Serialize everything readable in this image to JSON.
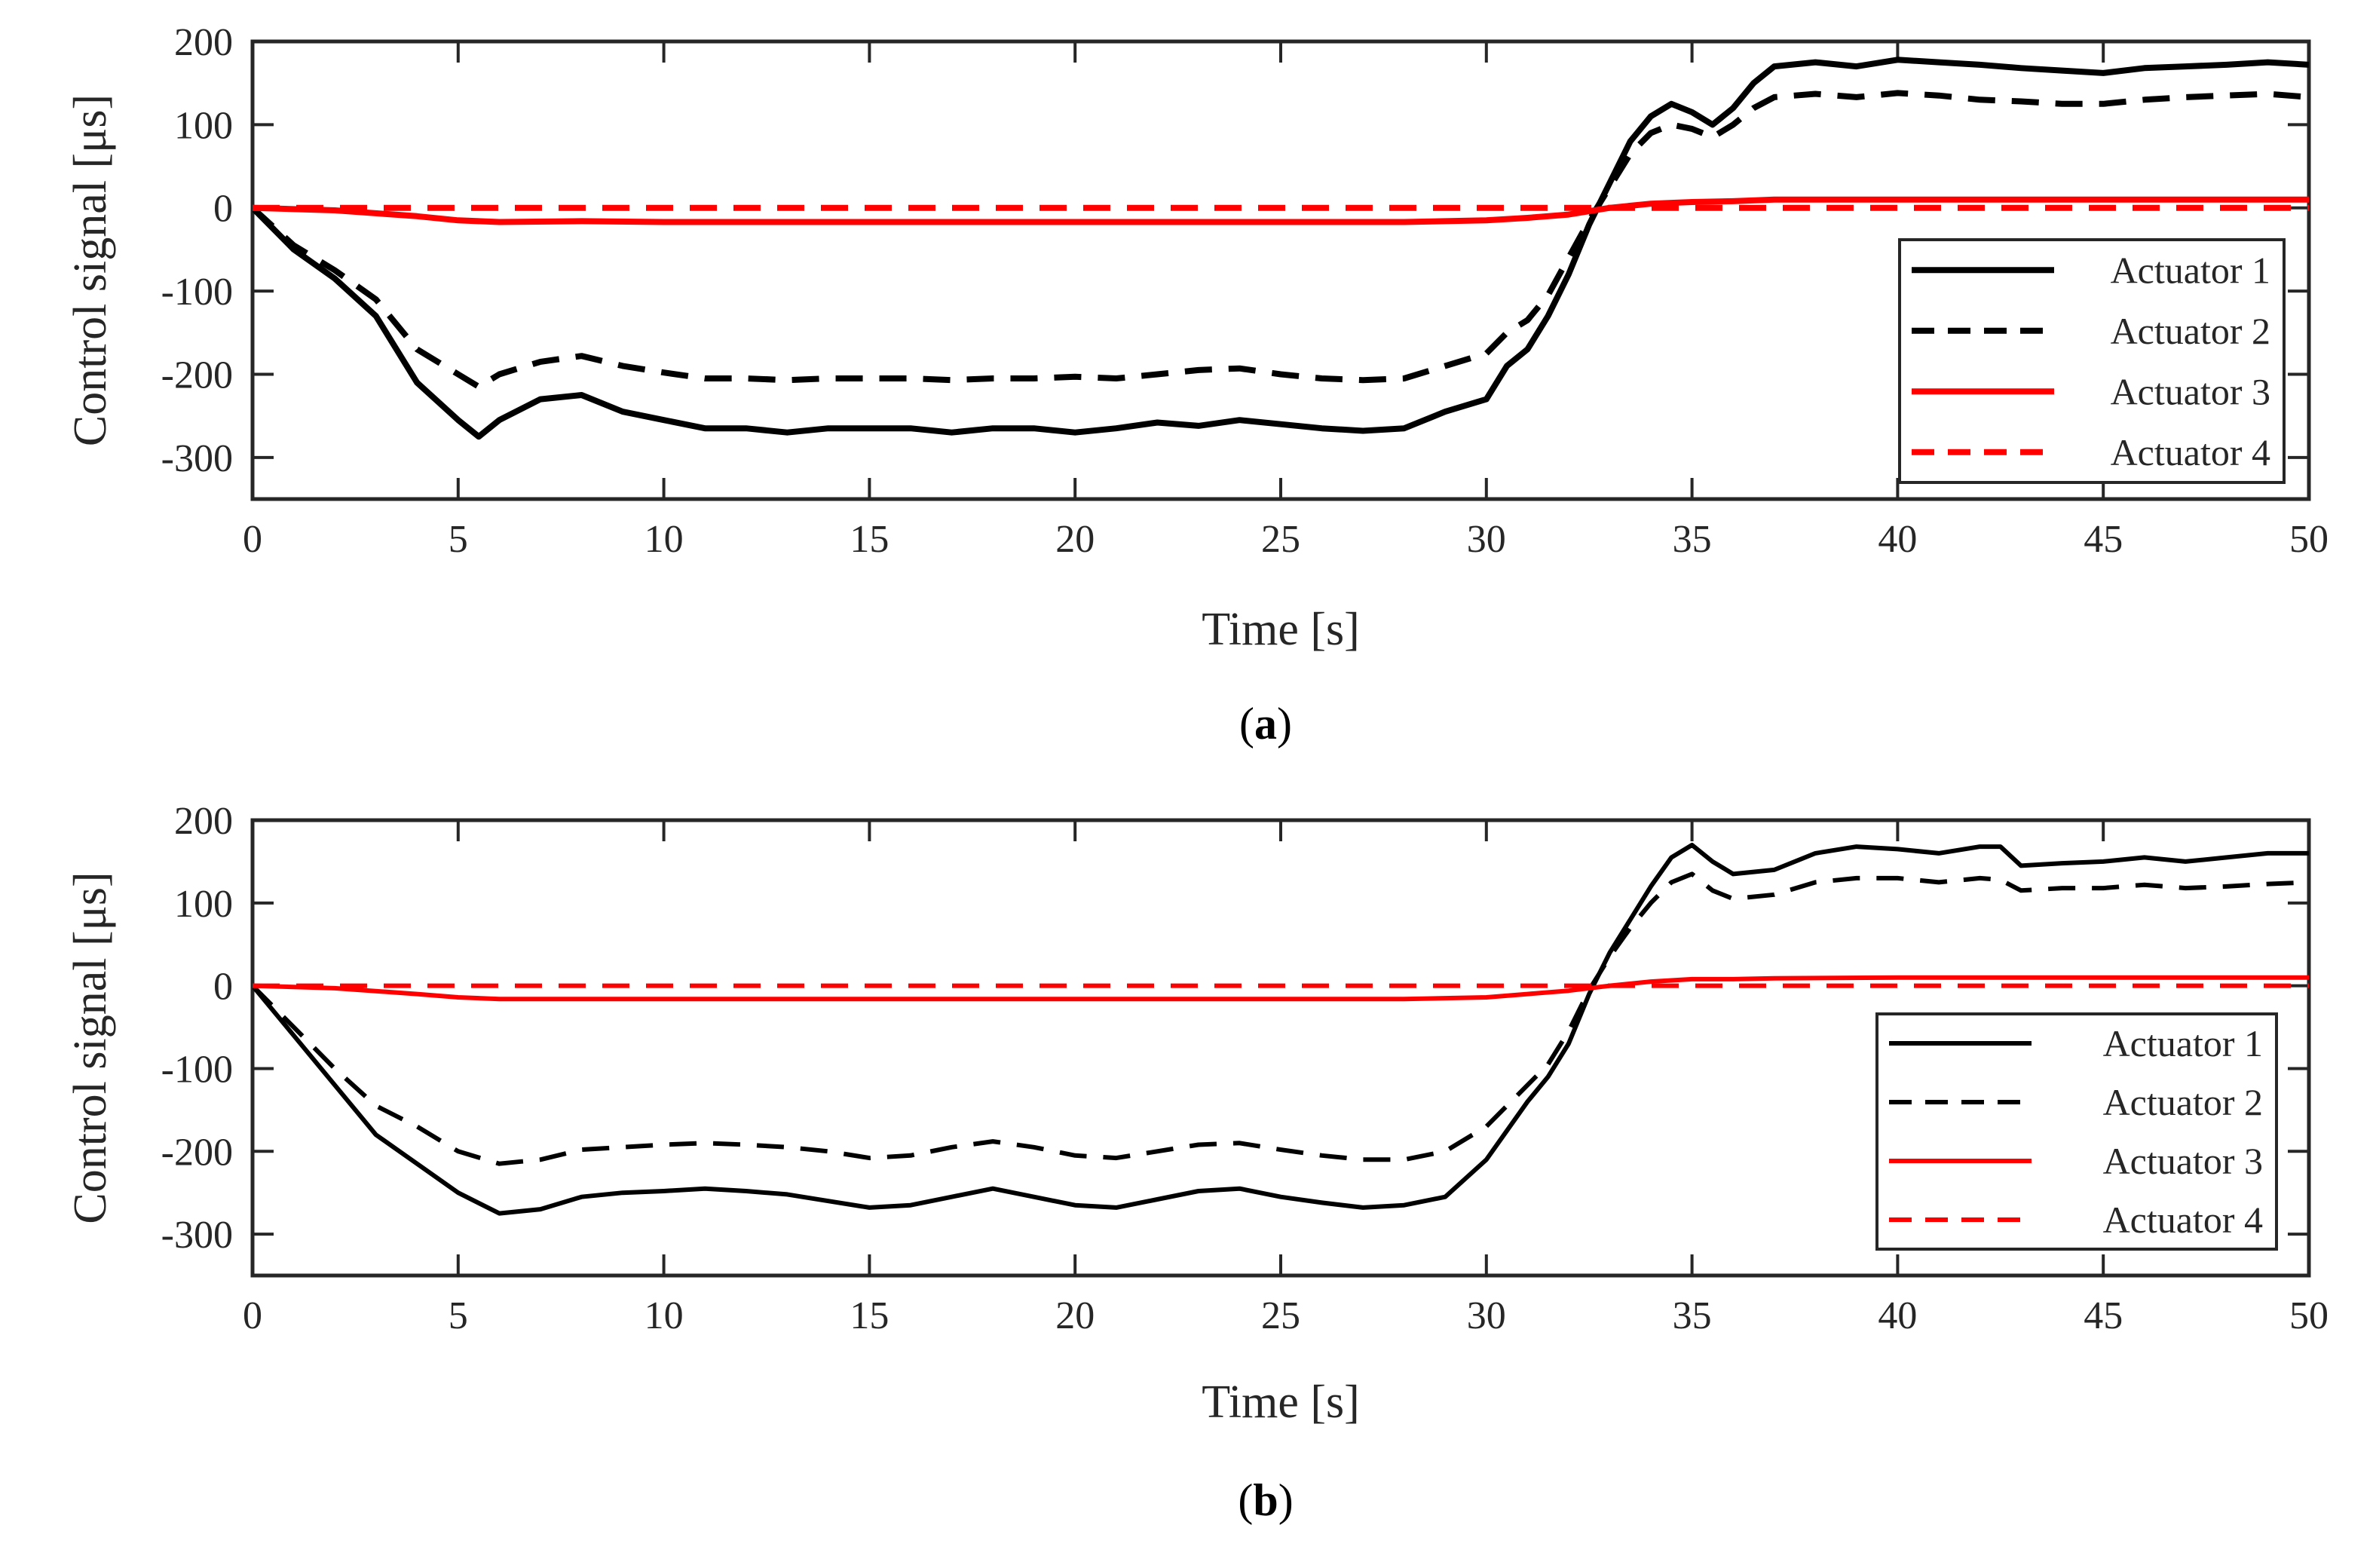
{
  "chart_data": [
    {
      "type": "line",
      "panel_label": "a",
      "xlabel": "Time [s]",
      "ylabel": "Control signal [μs]",
      "xlim": [
        0,
        50
      ],
      "ylim": [
        -350,
        200
      ],
      "xticks": [
        0,
        5,
        10,
        15,
        20,
        25,
        30,
        35,
        40,
        45,
        50
      ],
      "yticks": [
        -300,
        -200,
        -100,
        0,
        100,
        200
      ],
      "legend_position": "lower-right",
      "series": [
        {
          "name": "Actuator 1",
          "color": "#000000",
          "style": "solid",
          "x": [
            0,
            1,
            2,
            3,
            4,
            5,
            5.5,
            6,
            7,
            8,
            9,
            10,
            11,
            12,
            13,
            14,
            15,
            16,
            17,
            18,
            19,
            20,
            21,
            22,
            23,
            24,
            25,
            26,
            27,
            28,
            29,
            30,
            30.5,
            31,
            31.5,
            32,
            32.5,
            33,
            33.5,
            34,
            34.5,
            35,
            35.5,
            36,
            36.5,
            37,
            38,
            39,
            40,
            41,
            42,
            43,
            44,
            45,
            46,
            47,
            48,
            49,
            50
          ],
          "y": [
            0,
            -50,
            -85,
            -130,
            -210,
            -255,
            -275,
            -255,
            -230,
            -225,
            -245,
            -255,
            -265,
            -265,
            -270,
            -265,
            -265,
            -265,
            -270,
            -265,
            -265,
            -270,
            -265,
            -258,
            -262,
            -255,
            -260,
            -265,
            -268,
            -265,
            -245,
            -230,
            -190,
            -170,
            -130,
            -80,
            -20,
            30,
            80,
            110,
            125,
            115,
            100,
            120,
            150,
            170,
            175,
            170,
            178,
            175,
            172,
            168,
            165,
            162,
            168,
            170,
            172,
            175,
            172
          ]
        },
        {
          "name": "Actuator 2",
          "color": "#000000",
          "style": "dashed",
          "x": [
            0,
            1,
            2,
            3,
            4,
            5,
            5.5,
            6,
            7,
            8,
            9,
            10,
            11,
            12,
            13,
            14,
            15,
            16,
            17,
            18,
            19,
            20,
            21,
            22,
            23,
            24,
            25,
            26,
            27,
            28,
            29,
            30,
            30.5,
            31,
            31.5,
            32,
            32.5,
            33,
            33.5,
            34,
            34.5,
            35,
            35.5,
            36,
            36.5,
            37,
            38,
            39,
            40,
            41,
            42,
            43,
            44,
            45,
            46,
            47,
            48,
            49,
            50
          ],
          "y": [
            0,
            -45,
            -75,
            -110,
            -170,
            -200,
            -215,
            -200,
            -185,
            -178,
            -190,
            -198,
            -205,
            -205,
            -207,
            -205,
            -205,
            -205,
            -207,
            -205,
            -205,
            -203,
            -205,
            -200,
            -195,
            -193,
            -200,
            -205,
            -207,
            -205,
            -190,
            -175,
            -150,
            -135,
            -105,
            -60,
            -15,
            25,
            65,
            90,
            100,
            95,
            85,
            100,
            120,
            133,
            137,
            133,
            138,
            135,
            130,
            128,
            125,
            125,
            130,
            133,
            135,
            137,
            133
          ]
        },
        {
          "name": "Actuator 3",
          "color": "#ff0000",
          "style": "solid",
          "x": [
            0,
            2,
            4,
            5,
            6,
            8,
            10,
            15,
            20,
            25,
            28,
            30,
            31,
            32,
            33,
            34,
            35,
            36,
            37,
            40,
            45,
            50
          ],
          "y": [
            0,
            -3,
            -10,
            -15,
            -17,
            -16,
            -17,
            -17,
            -17,
            -17,
            -17,
            -15,
            -12,
            -8,
            0,
            5,
            7,
            8,
            10,
            10,
            10,
            10
          ]
        },
        {
          "name": "Actuator 4",
          "color": "#ff0000",
          "style": "dashed",
          "x": [
            0,
            50
          ],
          "y": [
            0,
            0
          ]
        }
      ]
    },
    {
      "type": "line",
      "panel_label": "b",
      "xlabel": "Time [s]",
      "ylabel": "Control signal [μs]",
      "xlim": [
        0,
        50
      ],
      "ylim": [
        -350,
        200
      ],
      "xticks": [
        0,
        5,
        10,
        15,
        20,
        25,
        30,
        35,
        40,
        45,
        50
      ],
      "yticks": [
        -300,
        -200,
        -100,
        0,
        100,
        200
      ],
      "legend_position": "lower-right",
      "series": [
        {
          "name": "Actuator 1",
          "color": "#000000",
          "style": "solid",
          "x": [
            0,
            1,
            2,
            3,
            4,
            5,
            6,
            7,
            8,
            9,
            10,
            11,
            12,
            13,
            14,
            15,
            16,
            17,
            18,
            19,
            20,
            21,
            22,
            23,
            24,
            25,
            26,
            27,
            28,
            29,
            30,
            31,
            31.5,
            32,
            32.5,
            33,
            33.5,
            34,
            34.5,
            35,
            35.5,
            36,
            37,
            38,
            39,
            40,
            41,
            42,
            42.5,
            43,
            44,
            45,
            46,
            47,
            48,
            49,
            50
          ],
          "y": [
            0,
            -60,
            -120,
            -180,
            -215,
            -250,
            -275,
            -270,
            -255,
            -250,
            -248,
            -245,
            -248,
            -252,
            -260,
            -268,
            -265,
            -255,
            -245,
            -255,
            -265,
            -268,
            -258,
            -248,
            -245,
            -255,
            -262,
            -268,
            -265,
            -255,
            -210,
            -140,
            -110,
            -70,
            -10,
            40,
            80,
            120,
            155,
            170,
            150,
            135,
            140,
            160,
            168,
            165,
            160,
            168,
            168,
            145,
            148,
            150,
            155,
            150,
            155,
            160,
            160
          ]
        },
        {
          "name": "Actuator 2",
          "color": "#000000",
          "style": "dashed",
          "x": [
            0,
            1,
            2,
            3,
            4,
            5,
            6,
            7,
            8,
            9,
            10,
            11,
            12,
            13,
            14,
            15,
            16,
            17,
            18,
            19,
            20,
            21,
            22,
            23,
            24,
            25,
            26,
            27,
            28,
            29,
            30,
            31,
            31.5,
            32,
            32.5,
            33,
            33.5,
            34,
            34.5,
            35,
            35.5,
            36,
            37,
            38,
            39,
            40,
            41,
            42,
            42.5,
            43,
            44,
            45,
            46,
            47,
            48,
            49,
            50
          ],
          "y": [
            0,
            -50,
            -100,
            -145,
            -170,
            -200,
            -215,
            -210,
            -198,
            -195,
            -192,
            -190,
            -192,
            -195,
            -200,
            -208,
            -205,
            -195,
            -188,
            -195,
            -205,
            -208,
            -200,
            -192,
            -190,
            -198,
            -205,
            -210,
            -210,
            -200,
            -170,
            -120,
            -95,
            -55,
            -5,
            35,
            70,
            100,
            125,
            135,
            115,
            105,
            110,
            125,
            130,
            130,
            125,
            130,
            128,
            115,
            118,
            118,
            122,
            118,
            120,
            123,
            125
          ]
        },
        {
          "name": "Actuator 3",
          "color": "#ff0000",
          "style": "solid",
          "x": [
            0,
            2,
            4,
            5,
            6,
            8,
            10,
            15,
            20,
            25,
            28,
            30,
            31,
            32,
            33,
            34,
            35,
            36,
            37,
            40,
            45,
            50
          ],
          "y": [
            0,
            -3,
            -10,
            -14,
            -16,
            -16,
            -16,
            -16,
            -16,
            -16,
            -16,
            -14,
            -10,
            -6,
            0,
            5,
            8,
            8,
            9,
            10,
            10,
            10
          ]
        },
        {
          "name": "Actuator 4",
          "color": "#ff0000",
          "style": "dashed",
          "x": [
            0,
            50
          ],
          "y": [
            0,
            0
          ]
        }
      ]
    }
  ]
}
